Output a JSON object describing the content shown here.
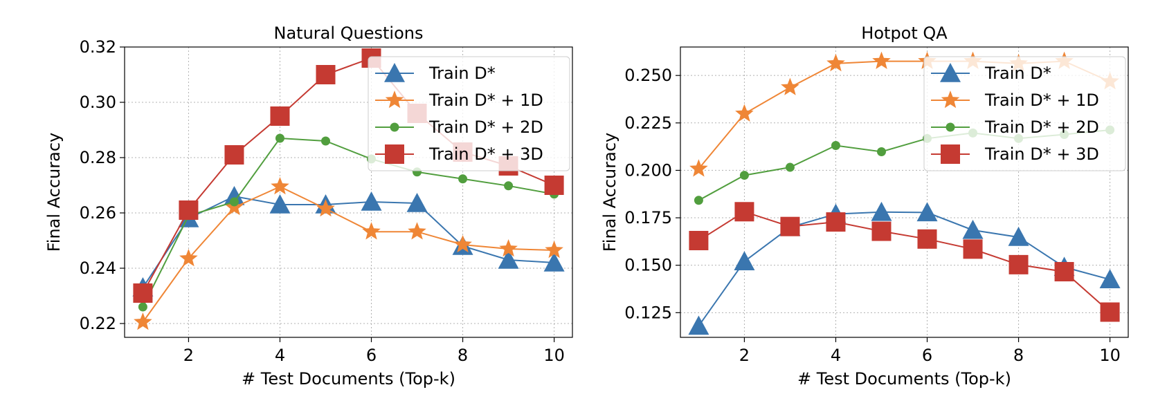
{
  "chart_data": [
    {
      "type": "line",
      "title": "Natural Questions",
      "xlabel": "# Test Documents (Top-k)",
      "ylabel": "Final Accuracy",
      "xlim": [
        0.6,
        10.4
      ],
      "ylim": [
        0.215,
        0.32
      ],
      "xticks": [
        2,
        4,
        6,
        8,
        10
      ],
      "xtick_labels": [
        "2",
        "4",
        "6",
        "8",
        "10"
      ],
      "yticks": [
        0.22,
        0.24,
        0.26,
        0.28,
        0.3,
        0.32
      ],
      "ytick_labels": [
        "0.22",
        "0.24",
        "0.26",
        "0.28",
        "0.30",
        "0.32"
      ],
      "grid": true,
      "legend_position": "top-right",
      "x": [
        1,
        2,
        3,
        4,
        5,
        6,
        7,
        8,
        9,
        10
      ],
      "series": [
        {
          "name": "Train D*",
          "color": "#3a76af",
          "marker": "triangle",
          "values": [
            0.233,
            0.258,
            0.266,
            0.263,
            0.263,
            0.264,
            0.2635,
            0.248,
            0.243,
            0.242
          ]
        },
        {
          "name": "Train D* + 1D",
          "color": "#ef8636",
          "marker": "star",
          "values": [
            0.2205,
            0.2435,
            0.262,
            0.2695,
            0.2615,
            0.2532,
            0.2532,
            0.2485,
            0.247,
            0.2465
          ]
        },
        {
          "name": "Train D* + 2D",
          "color": "#519e3e",
          "marker": "circle",
          "values": [
            0.226,
            0.259,
            0.264,
            0.287,
            0.286,
            0.2795,
            0.2748,
            0.2723,
            0.2698,
            0.2668
          ]
        },
        {
          "name": "Train D* + 3D",
          "color": "#c53a32",
          "marker": "square",
          "values": [
            0.231,
            0.261,
            0.281,
            0.295,
            0.31,
            0.316,
            0.296,
            0.282,
            0.277,
            0.27
          ]
        }
      ]
    },
    {
      "type": "line",
      "title": "Hotpot QA",
      "xlabel": "# Test Documents (Top-k)",
      "ylabel": "Final Accuracy",
      "xlim": [
        0.6,
        10.4
      ],
      "ylim": [
        0.112,
        0.265
      ],
      "xticks": [
        2,
        4,
        6,
        8,
        10
      ],
      "xtick_labels": [
        "2",
        "4",
        "6",
        "8",
        "10"
      ],
      "yticks": [
        0.125,
        0.15,
        0.175,
        0.2,
        0.225,
        0.25
      ],
      "ytick_labels": [
        "0.125",
        "0.150",
        "0.175",
        "0.200",
        "0.225",
        "0.250"
      ],
      "grid": true,
      "legend_position": "top-right",
      "x": [
        1,
        2,
        3,
        4,
        5,
        6,
        7,
        8,
        9,
        10
      ],
      "series": [
        {
          "name": "Train D*",
          "color": "#3a76af",
          "marker": "triangle",
          "values": [
            0.118,
            0.152,
            0.17,
            0.177,
            0.178,
            0.1778,
            0.1685,
            0.1648,
            0.149,
            0.1425
          ]
        },
        {
          "name": "Train D* + 1D",
          "color": "#ef8636",
          "marker": "star",
          "values": [
            0.2008,
            0.2298,
            0.2437,
            0.2563,
            0.2575,
            0.2575,
            0.2575,
            0.2563,
            0.2575,
            0.2468
          ]
        },
        {
          "name": "Train D* + 2D",
          "color": "#519e3e",
          "marker": "circle",
          "values": [
            0.1842,
            0.1974,
            0.2016,
            0.2131,
            0.2098,
            0.2168,
            0.2197,
            0.2168,
            0.2189,
            0.2213
          ]
        },
        {
          "name": "Train D* + 3D",
          "color": "#c53a32",
          "marker": "square",
          "values": [
            0.163,
            0.1782,
            0.1704,
            0.1728,
            0.1679,
            0.1638,
            0.1585,
            0.1503,
            0.1466,
            0.1253
          ]
        }
      ]
    }
  ]
}
